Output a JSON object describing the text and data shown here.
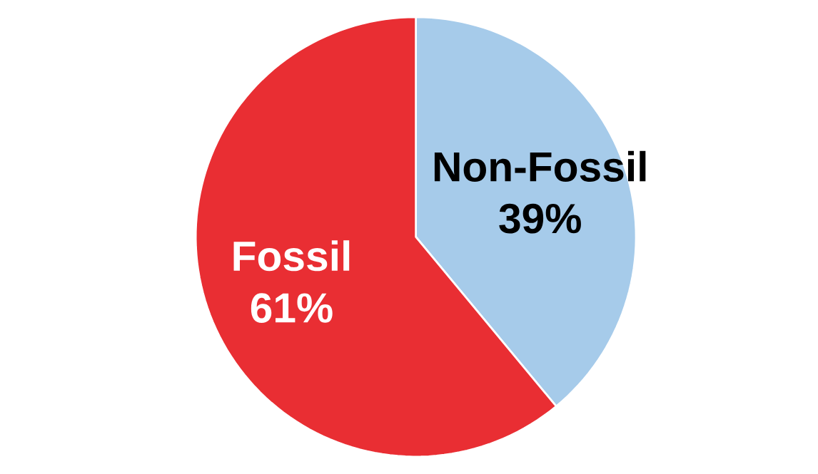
{
  "chart_data": {
    "type": "pie",
    "categories": [
      "Non-Fossil",
      "Fossil"
    ],
    "values": [
      39,
      61
    ],
    "colors": [
      "#a6cbea",
      "#e92e33"
    ],
    "value_labels": [
      "39%",
      "61%"
    ]
  }
}
